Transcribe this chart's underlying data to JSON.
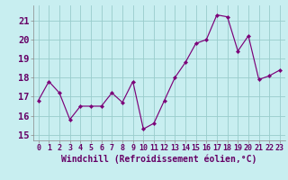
{
  "x": [
    0,
    1,
    2,
    3,
    4,
    5,
    6,
    7,
    8,
    9,
    10,
    11,
    12,
    13,
    14,
    15,
    16,
    17,
    18,
    19,
    20,
    21,
    22,
    23
  ],
  "y": [
    16.8,
    17.8,
    17.2,
    15.8,
    16.5,
    16.5,
    16.5,
    17.2,
    16.7,
    17.8,
    15.3,
    15.6,
    16.8,
    18.0,
    18.8,
    19.8,
    20.0,
    21.3,
    21.2,
    19.4,
    20.2,
    17.9,
    18.1,
    18.4
  ],
  "line_color": "#7B0078",
  "marker_color": "#7B0078",
  "bg_color": "#C8EEF0",
  "grid_color": "#99CCCC",
  "xlabel": "Windchill (Refroidissement éolien,°C)",
  "ylabel_ticks": [
    15,
    16,
    17,
    18,
    19,
    20,
    21
  ],
  "ylim": [
    14.7,
    21.8
  ],
  "xlim": [
    -0.5,
    23.5
  ],
  "xlabel_color": "#660066",
  "tick_label_color": "#660066",
  "xlabel_fontsize": 7.0,
  "tick_fontsize": 7.5
}
